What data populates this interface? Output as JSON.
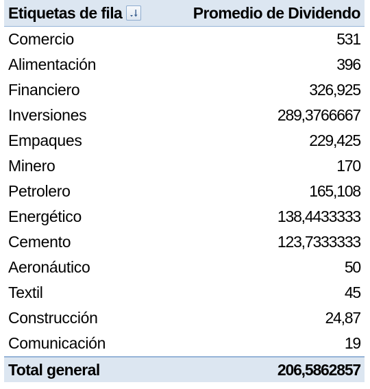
{
  "pivot": {
    "header": {
      "row_label": "Etiquetas de fila",
      "filter_icon": "sort-filter-dropdown-icon",
      "value_label": "Promedio de Dividendo"
    },
    "rows": [
      {
        "label": "Comercio",
        "value": "531"
      },
      {
        "label": "Alimentación",
        "value": "396"
      },
      {
        "label": "Financiero",
        "value": "326,925"
      },
      {
        "label": "Inversiones",
        "value": "289,3766667"
      },
      {
        "label": "Empaques",
        "value": "229,425"
      },
      {
        "label": "Minero",
        "value": "170"
      },
      {
        "label": "Petrolero",
        "value": "165,108"
      },
      {
        "label": "Energético",
        "value": "138,4433333"
      },
      {
        "label": "Cemento",
        "value": "123,7333333"
      },
      {
        "label": "Aeronáutico",
        "value": "50"
      },
      {
        "label": "Textil",
        "value": "45"
      },
      {
        "label": "Construcción",
        "value": "24,87"
      },
      {
        "label": "Comunicación",
        "value": "19"
      }
    ],
    "total": {
      "label": "Total general",
      "value": "206,5862857"
    },
    "colors": {
      "header_bg": "#dce6f1",
      "border": "#95b3d7"
    }
  }
}
